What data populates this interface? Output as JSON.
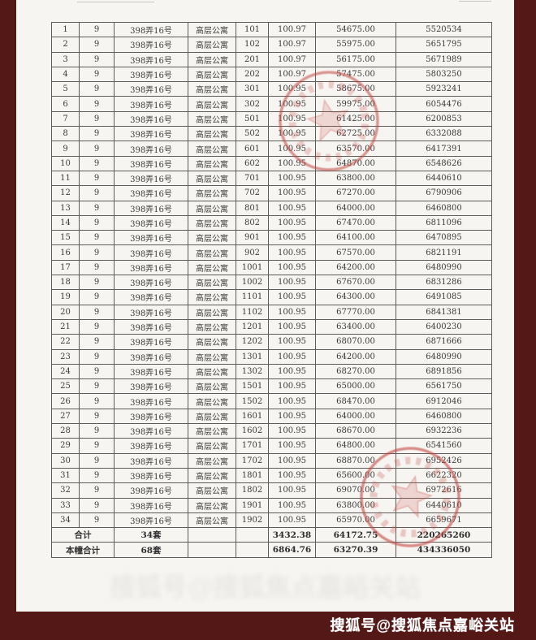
{
  "colors": {
    "frame": "#541817",
    "page": "#f7f5f2",
    "stamp": "#c14840",
    "table_line": "#5f5b58",
    "watermark_text": "#ffffff"
  },
  "watermark": {
    "text": "搜狐号@搜狐焦点嘉峪关站"
  },
  "table": {
    "rows": [
      {
        "no": "1",
        "block": "9",
        "address": "398弄16号",
        "type": "高层公寓",
        "room": "101",
        "area": "100.97",
        "price": "54675.00",
        "total": "5520534"
      },
      {
        "no": "2",
        "block": "9",
        "address": "398弄16号",
        "type": "高层公寓",
        "room": "102",
        "area": "100.97",
        "price": "55975.00",
        "total": "5651795"
      },
      {
        "no": "3",
        "block": "9",
        "address": "398弄16号",
        "type": "高层公寓",
        "room": "201",
        "area": "100.97",
        "price": "56175.00",
        "total": "5671989"
      },
      {
        "no": "4",
        "block": "9",
        "address": "398弄16号",
        "type": "高层公寓",
        "room": "202",
        "area": "100.97",
        "price": "57475.00",
        "total": "5803250"
      },
      {
        "no": "5",
        "block": "9",
        "address": "398弄16号",
        "type": "高层公寓",
        "room": "301",
        "area": "100.95",
        "price": "58675.00",
        "total": "5923241"
      },
      {
        "no": "6",
        "block": "9",
        "address": "398弄16号",
        "type": "高层公寓",
        "room": "302",
        "area": "100.95",
        "price": "59975.00",
        "total": "6054476"
      },
      {
        "no": "7",
        "block": "9",
        "address": "398弄16号",
        "type": "高层公寓",
        "room": "501",
        "area": "100.95",
        "price": "61425.00",
        "total": "6200853"
      },
      {
        "no": "8",
        "block": "9",
        "address": "398弄16号",
        "type": "高层公寓",
        "room": "502",
        "area": "100.95",
        "price": "62725.00",
        "total": "6332088"
      },
      {
        "no": "9",
        "block": "9",
        "address": "398弄16号",
        "type": "高层公寓",
        "room": "601",
        "area": "100.95",
        "price": "63570.00",
        "total": "6417391"
      },
      {
        "no": "10",
        "block": "9",
        "address": "398弄16号",
        "type": "高层公寓",
        "room": "602",
        "area": "100.95",
        "price": "64870.00",
        "total": "6548626"
      },
      {
        "no": "11",
        "block": "9",
        "address": "398弄16号",
        "type": "高层公寓",
        "room": "701",
        "area": "100.95",
        "price": "63800.00",
        "total": "6440610"
      },
      {
        "no": "12",
        "block": "9",
        "address": "398弄16号",
        "type": "高层公寓",
        "room": "702",
        "area": "100.95",
        "price": "67270.00",
        "total": "6790906"
      },
      {
        "no": "13",
        "block": "9",
        "address": "398弄16号",
        "type": "高层公寓",
        "room": "801",
        "area": "100.95",
        "price": "64000.00",
        "total": "6460800"
      },
      {
        "no": "14",
        "block": "9",
        "address": "398弄16号",
        "type": "高层公寓",
        "room": "802",
        "area": "100.95",
        "price": "67470.00",
        "total": "6811096"
      },
      {
        "no": "15",
        "block": "9",
        "address": "398弄16号",
        "type": "高层公寓",
        "room": "901",
        "area": "100.95",
        "price": "64100.00",
        "total": "6470895"
      },
      {
        "no": "16",
        "block": "9",
        "address": "398弄16号",
        "type": "高层公寓",
        "room": "902",
        "area": "100.95",
        "price": "67570.00",
        "total": "6821191"
      },
      {
        "no": "17",
        "block": "9",
        "address": "398弄16号",
        "type": "高层公寓",
        "room": "1001",
        "area": "100.95",
        "price": "64200.00",
        "total": "6480990"
      },
      {
        "no": "18",
        "block": "9",
        "address": "398弄16号",
        "type": "高层公寓",
        "room": "1002",
        "area": "100.95",
        "price": "67670.00",
        "total": "6831286"
      },
      {
        "no": "19",
        "block": "9",
        "address": "398弄16号",
        "type": "高层公寓",
        "room": "1101",
        "area": "100.95",
        "price": "64300.00",
        "total": "6491085"
      },
      {
        "no": "20",
        "block": "9",
        "address": "398弄16号",
        "type": "高层公寓",
        "room": "1102",
        "area": "100.95",
        "price": "67770.00",
        "total": "6841381"
      },
      {
        "no": "21",
        "block": "9",
        "address": "398弄16号",
        "type": "高层公寓",
        "room": "1201",
        "area": "100.95",
        "price": "63400.00",
        "total": "6400230"
      },
      {
        "no": "22",
        "block": "9",
        "address": "398弄16号",
        "type": "高层公寓",
        "room": "1202",
        "area": "100.95",
        "price": "68070.00",
        "total": "6871666"
      },
      {
        "no": "23",
        "block": "9",
        "address": "398弄16号",
        "type": "高层公寓",
        "room": "1301",
        "area": "100.95",
        "price": "64200.00",
        "total": "6480990"
      },
      {
        "no": "24",
        "block": "9",
        "address": "398弄16号",
        "type": "高层公寓",
        "room": "1302",
        "area": "100.95",
        "price": "68270.00",
        "total": "6891856"
      },
      {
        "no": "25",
        "block": "9",
        "address": "398弄16号",
        "type": "高层公寓",
        "room": "1501",
        "area": "100.95",
        "price": "65000.00",
        "total": "6561750"
      },
      {
        "no": "26",
        "block": "9",
        "address": "398弄16号",
        "type": "高层公寓",
        "room": "1502",
        "area": "100.95",
        "price": "68470.00",
        "total": "6912046"
      },
      {
        "no": "27",
        "block": "9",
        "address": "398弄16号",
        "type": "高层公寓",
        "room": "1601",
        "area": "100.95",
        "price": "64000.00",
        "total": "6460800"
      },
      {
        "no": "28",
        "block": "9",
        "address": "398弄16号",
        "type": "高层公寓",
        "room": "1602",
        "area": "100.95",
        "price": "68670.00",
        "total": "6932236"
      },
      {
        "no": "29",
        "block": "9",
        "address": "398弄16号",
        "type": "高层公寓",
        "room": "1701",
        "area": "100.95",
        "price": "64800.00",
        "total": "6541560"
      },
      {
        "no": "30",
        "block": "9",
        "address": "398弄16号",
        "type": "高层公寓",
        "room": "1702",
        "area": "100.95",
        "price": "68870.00",
        "total": "6952426"
      },
      {
        "no": "31",
        "block": "9",
        "address": "398弄16号",
        "type": "高层公寓",
        "room": "1801",
        "area": "100.95",
        "price": "65600.00",
        "total": "6622320"
      },
      {
        "no": "32",
        "block": "9",
        "address": "398弄16号",
        "type": "高层公寓",
        "room": "1802",
        "area": "100.95",
        "price": "69070.00",
        "total": "6972616"
      },
      {
        "no": "33",
        "block": "9",
        "address": "398弄16号",
        "type": "高层公寓",
        "room": "1901",
        "area": "100.95",
        "price": "63800.00",
        "total": "6440610"
      },
      {
        "no": "34",
        "block": "9",
        "address": "398弄16号",
        "type": "高层公寓",
        "room": "1902",
        "area": "100.95",
        "price": "65970.00",
        "total": "6659671"
      }
    ],
    "summary": [
      {
        "label": "合计",
        "units": "34套",
        "area": "3432.38",
        "price": "64172.75",
        "total": "220265260"
      },
      {
        "label": "本幢合计",
        "units": "68套",
        "area": "6864.76",
        "price": "63270.39",
        "total": "434336050"
      }
    ]
  }
}
